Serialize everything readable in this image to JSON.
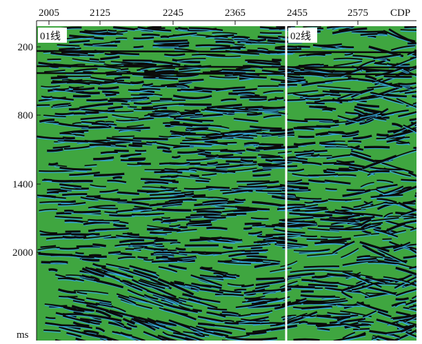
{
  "x_axis": {
    "ticks": [
      "2005",
      "2125",
      "2245",
      "2365",
      "2455",
      "2575"
    ],
    "unit": "CDP"
  },
  "y_axis": {
    "ticks": [
      "200",
      "800",
      "1400",
      "2000"
    ],
    "unit": "ms"
  },
  "panels": [
    {
      "label": "01线"
    },
    {
      "label": "02线"
    }
  ]
}
